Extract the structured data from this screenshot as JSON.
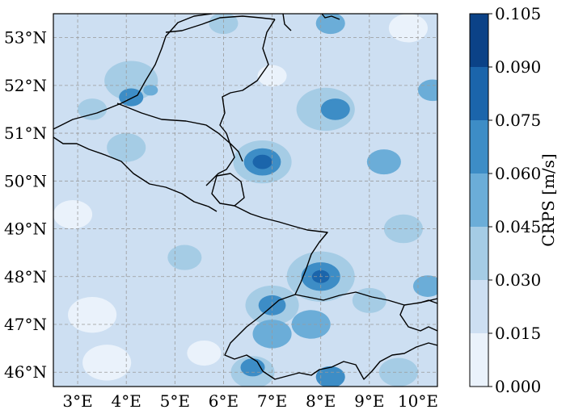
{
  "map": {
    "projection": "lat-lon",
    "lon_range": [
      2.5,
      10.4
    ],
    "lat_range": [
      45.7,
      53.5
    ],
    "gridlines": true,
    "lon_ticks": [
      {
        "value": 3,
        "label": "3°E"
      },
      {
        "value": 4,
        "label": "4°E"
      },
      {
        "value": 5,
        "label": "5°E"
      },
      {
        "value": 6,
        "label": "6°E"
      },
      {
        "value": 7,
        "label": "7°E"
      },
      {
        "value": 8,
        "label": "8°E"
      },
      {
        "value": 9,
        "label": "9°E"
      },
      {
        "value": 10,
        "label": "10°E"
      }
    ],
    "lat_ticks": [
      {
        "value": 46,
        "label": "46°N"
      },
      {
        "value": 47,
        "label": "47°N"
      },
      {
        "value": 48,
        "label": "48°N"
      },
      {
        "value": 49,
        "label": "49°N"
      },
      {
        "value": 50,
        "label": "50°N"
      },
      {
        "value": 51,
        "label": "51°N"
      },
      {
        "value": 52,
        "label": "52°N"
      },
      {
        "value": 53,
        "label": "53°N"
      }
    ],
    "levels_colors": [
      "#eaf2fb",
      "#cddff2",
      "#a5cce5",
      "#6badd8",
      "#3d8dc6",
      "#1b65ab",
      "#0b4287"
    ],
    "background_level": 1,
    "blobs": [
      {
        "lon": 4.1,
        "lat": 52.1,
        "r": 0.55,
        "level": 2
      },
      {
        "lon": 4.1,
        "lat": 51.75,
        "r": 0.25,
        "level": 4
      },
      {
        "lon": 3.3,
        "lat": 51.5,
        "r": 0.3,
        "level": 2
      },
      {
        "lon": 4.5,
        "lat": 51.9,
        "r": 0.15,
        "level": 3
      },
      {
        "lon": 8.1,
        "lat": 51.5,
        "r": 0.6,
        "level": 2
      },
      {
        "lon": 8.3,
        "lat": 51.5,
        "r": 0.3,
        "level": 4
      },
      {
        "lon": 6.8,
        "lat": 50.4,
        "r": 0.6,
        "level": 2
      },
      {
        "lon": 6.8,
        "lat": 50.4,
        "r": 0.38,
        "level": 4
      },
      {
        "lon": 6.8,
        "lat": 50.4,
        "r": 0.2,
        "level": 5
      },
      {
        "lon": 9.3,
        "lat": 50.4,
        "r": 0.35,
        "level": 3
      },
      {
        "lon": 10.3,
        "lat": 51.9,
        "r": 0.3,
        "level": 3
      },
      {
        "lon": 6.0,
        "lat": 53.3,
        "r": 0.3,
        "level": 2
      },
      {
        "lon": 8.2,
        "lat": 53.3,
        "r": 0.3,
        "level": 3
      },
      {
        "lon": 8.0,
        "lat": 48.0,
        "r": 0.7,
        "level": 2
      },
      {
        "lon": 8.0,
        "lat": 48.0,
        "r": 0.4,
        "level": 4
      },
      {
        "lon": 8.0,
        "lat": 48.0,
        "r": 0.18,
        "level": 5
      },
      {
        "lon": 7.0,
        "lat": 47.4,
        "r": 0.55,
        "level": 2
      },
      {
        "lon": 7.0,
        "lat": 47.4,
        "r": 0.28,
        "level": 4
      },
      {
        "lon": 7.0,
        "lat": 46.8,
        "r": 0.4,
        "level": 3
      },
      {
        "lon": 7.8,
        "lat": 47.0,
        "r": 0.4,
        "level": 3
      },
      {
        "lon": 6.6,
        "lat": 46.0,
        "r": 0.45,
        "level": 2
      },
      {
        "lon": 6.6,
        "lat": 46.1,
        "r": 0.25,
        "level": 4
      },
      {
        "lon": 8.2,
        "lat": 45.9,
        "r": 0.3,
        "level": 4
      },
      {
        "lon": 10.2,
        "lat": 47.8,
        "r": 0.3,
        "level": 3
      },
      {
        "lon": 9.0,
        "lat": 47.5,
        "r": 0.35,
        "level": 2
      },
      {
        "lon": 9.6,
        "lat": 46.0,
        "r": 0.4,
        "level": 2
      },
      {
        "lon": 3.3,
        "lat": 47.2,
        "r": 0.5,
        "level": 0
      },
      {
        "lon": 3.6,
        "lat": 46.2,
        "r": 0.5,
        "level": 0
      },
      {
        "lon": 5.6,
        "lat": 46.4,
        "r": 0.35,
        "level": 0
      },
      {
        "lon": 2.9,
        "lat": 49.3,
        "r": 0.4,
        "level": 0
      },
      {
        "lon": 9.8,
        "lat": 53.2,
        "r": 0.4,
        "level": 0
      },
      {
        "lon": 7.0,
        "lat": 52.2,
        "r": 0.3,
        "level": 0
      },
      {
        "lon": 4.0,
        "lat": 50.7,
        "r": 0.4,
        "level": 2
      },
      {
        "lon": 9.7,
        "lat": 49.0,
        "r": 0.4,
        "level": 2
      },
      {
        "lon": 5.2,
        "lat": 48.4,
        "r": 0.35,
        "level": 2
      }
    ]
  },
  "colorbar": {
    "label": "CRPS [m/s]",
    "ticks": [
      "0.000",
      "0.015",
      "0.030",
      "0.045",
      "0.060",
      "0.075",
      "0.090",
      "0.105"
    ],
    "colors": [
      "#eaf2fb",
      "#cddff2",
      "#a5cce5",
      "#6badd8",
      "#3d8dc6",
      "#1b65ab",
      "#0b4287"
    ]
  }
}
